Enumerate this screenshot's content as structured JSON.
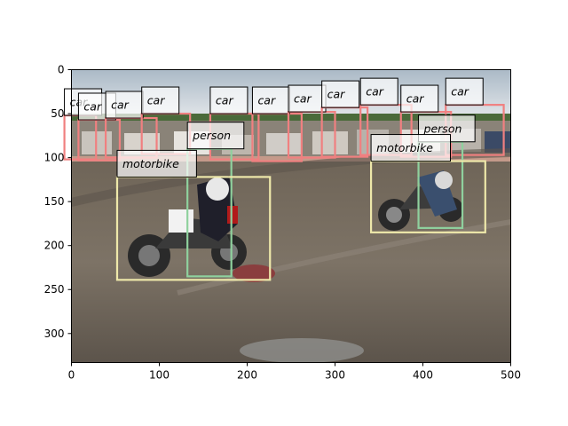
{
  "chart_data": {
    "type": "scatter",
    "image_width": 500,
    "image_height": 333,
    "xlim": [
      0,
      500
    ],
    "ylim": [
      333,
      0
    ],
    "xticks": [
      0,
      100,
      200,
      300,
      400,
      500
    ],
    "yticks": [
      0,
      50,
      100,
      150,
      200,
      250,
      300
    ],
    "grid": false,
    "title": "",
    "xlabel": "",
    "ylabel": "",
    "detections": [
      {
        "label": "car",
        "color": "#f08080",
        "bbox_data": [
          -8,
          52,
          28,
          102
        ]
      },
      {
        "label": "car",
        "color": "#f08080",
        "bbox_data": [
          8,
          57,
          55,
          103
        ]
      },
      {
        "label": "car",
        "color": "#f08080",
        "bbox_data": [
          39,
          55,
          97,
          100
        ]
      },
      {
        "label": "car",
        "color": "#f08080",
        "bbox_data": [
          80,
          50,
          135,
          96
        ]
      },
      {
        "label": "car",
        "color": "#f08080",
        "bbox_data": [
          158,
          50,
          213,
          102
        ]
      },
      {
        "label": "car",
        "color": "#f08080",
        "bbox_data": [
          206,
          50,
          262,
          104
        ]
      },
      {
        "label": "car",
        "color": "#f08080",
        "bbox_data": [
          247,
          48,
          300,
          100
        ]
      },
      {
        "label": "car",
        "color": "#f08080",
        "bbox_data": [
          285,
          43,
          337,
          99
        ]
      },
      {
        "label": "car",
        "color": "#f08080",
        "bbox_data": [
          329,
          40,
          387,
          97
        ]
      },
      {
        "label": "car",
        "color": "#f08080",
        "bbox_data": [
          375,
          48,
          432,
          99
        ]
      },
      {
        "label": "car",
        "color": "#f08080",
        "bbox_data": [
          426,
          40,
          492,
          97
        ]
      },
      {
        "label": "person",
        "color": "#8fd19e",
        "bbox_data": [
          132,
          90,
          182,
          235
        ]
      },
      {
        "label": "person",
        "color": "#8fd19e",
        "bbox_data": [
          395,
          82,
          445,
          180
        ]
      },
      {
        "label": "motorbike",
        "color": "#eee8aa",
        "bbox_data": [
          52,
          122,
          226,
          239
        ]
      },
      {
        "label": "motorbike",
        "color": "#eee8aa",
        "bbox_data": [
          341,
          104,
          471,
          185
        ]
      }
    ]
  }
}
